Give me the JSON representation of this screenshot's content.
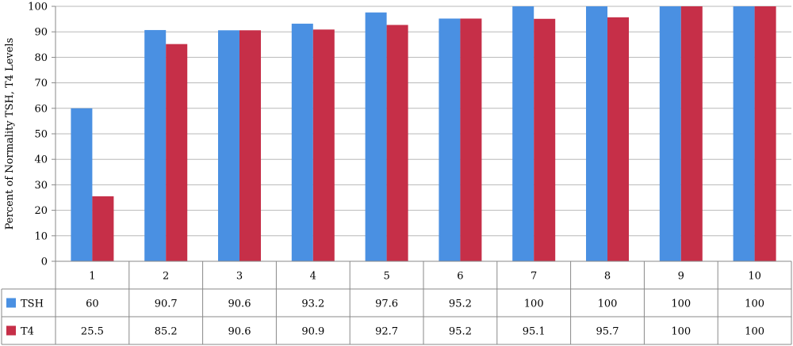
{
  "chart_data": {
    "type": "bar",
    "ylabel": "Percent of Normality TSH, T4 Levels",
    "ylim": [
      0,
      100
    ],
    "yticks": [
      0,
      10,
      20,
      30,
      40,
      50,
      60,
      70,
      80,
      90,
      100
    ],
    "grid": true,
    "legend": "data-table-left",
    "categories": [
      "1",
      "2",
      "3",
      "4",
      "5",
      "6",
      "7",
      "8",
      "9",
      "10"
    ],
    "series": [
      {
        "name": "TSH",
        "color": "#4a90e2",
        "values": [
          60,
          90.7,
          90.6,
          93.2,
          97.6,
          95.2,
          100,
          100,
          100,
          100
        ],
        "labels": [
          "60",
          "90.7",
          "90.6",
          "93.2",
          "97.6",
          "95.2",
          "100",
          "100",
          "100",
          "100"
        ]
      },
      {
        "name": "T4",
        "color": "#c62f48",
        "values": [
          25.5,
          85.2,
          90.6,
          90.9,
          92.7,
          95.2,
          95.1,
          95.7,
          100,
          100
        ],
        "labels": [
          "25.5",
          "85.2",
          "90.6",
          "90.9",
          "92.7",
          "95.2",
          "95.1",
          "95.7",
          "100",
          "100"
        ]
      }
    ]
  }
}
